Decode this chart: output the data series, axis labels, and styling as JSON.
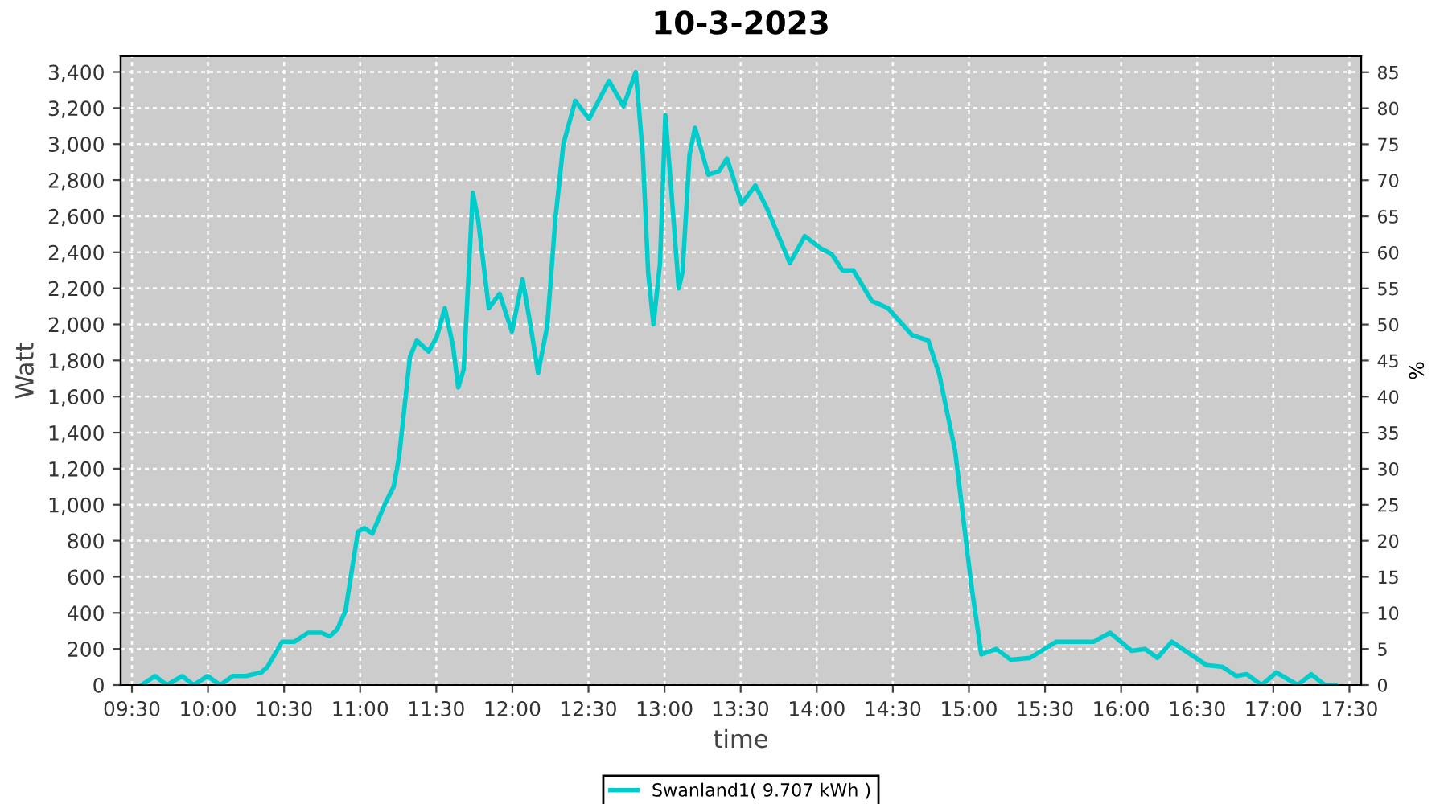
{
  "chart_data": {
    "type": "line",
    "title": "10-3-2023",
    "xlabel": "time",
    "ylabel": "Watt",
    "y2label": "%",
    "xlim": [
      9.426,
      17.577
    ],
    "xticks": [
      {
        "value": 9.5,
        "label": "09:30"
      },
      {
        "value": 10,
        "label": "10:00"
      },
      {
        "value": 10.5,
        "label": "10:30"
      },
      {
        "value": 11,
        "label": "11:00"
      },
      {
        "value": 11.5,
        "label": "11:30"
      },
      {
        "value": 12,
        "label": "12:00"
      },
      {
        "value": 12.5,
        "label": "12:30"
      },
      {
        "value": 13,
        "label": "13:00"
      },
      {
        "value": 13.5,
        "label": "13:30"
      },
      {
        "value": 14,
        "label": "14:00"
      },
      {
        "value": 14.5,
        "label": "14:30"
      },
      {
        "value": 15,
        "label": "15:00"
      },
      {
        "value": 15.5,
        "label": "15:30"
      },
      {
        "value": 16,
        "label": "16:00"
      },
      {
        "value": 16.5,
        "label": "16:30"
      },
      {
        "value": 17,
        "label": "17:00"
      },
      {
        "value": 17.5,
        "label": "17:30"
      }
    ],
    "ylim": [
      0,
      3487
    ],
    "yticks": [
      0,
      200,
      400,
      600,
      800,
      {
        "value": 1000,
        "label": "1,000"
      },
      {
        "value": 1200,
        "label": "1,200"
      },
      {
        "value": 1400,
        "label": "1,400"
      },
      {
        "value": 1600,
        "label": "1,600"
      },
      {
        "value": 1800,
        "label": "1,800"
      },
      {
        "value": 2000,
        "label": "2,000"
      },
      {
        "value": 2200,
        "label": "2,200"
      },
      {
        "value": 2400,
        "label": "2,400"
      },
      {
        "value": 2600,
        "label": "2,600"
      },
      {
        "value": 2800,
        "label": "2,800"
      },
      {
        "value": 3000,
        "label": "3,000"
      },
      {
        "value": 3200,
        "label": "3,200"
      },
      {
        "value": 3400,
        "label": "3,400"
      }
    ],
    "y2lim": [
      0,
      87.2
    ],
    "y2ticks": [
      0,
      5,
      10,
      15,
      20,
      25,
      30,
      35,
      40,
      45,
      50,
      55,
      60,
      65,
      70,
      75,
      80,
      85
    ],
    "grid": true,
    "legend": "bottom",
    "marker": "none",
    "line_style": "solid",
    "series": [
      {
        "name": "Swanland1( 9.707 kWh )",
        "color": "#00cccc",
        "x": [
          9.563,
          9.652,
          9.73,
          9.83,
          9.905,
          9.997,
          10.08,
          10.163,
          10.25,
          10.35,
          10.39,
          10.487,
          10.568,
          10.657,
          10.745,
          10.8,
          10.85,
          10.903,
          10.985,
          11.027,
          11.08,
          11.16,
          11.22,
          11.256,
          11.327,
          11.372,
          11.45,
          11.503,
          11.556,
          11.61,
          11.644,
          11.68,
          11.74,
          11.775,
          11.845,
          11.916,
          11.997,
          12.067,
          12.12,
          12.169,
          12.229,
          12.282,
          12.335,
          12.413,
          12.504,
          12.635,
          12.73,
          12.811,
          12.857,
          12.892,
          12.927,
          12.97,
          13.005,
          13.04,
          13.093,
          13.118,
          13.164,
          13.2,
          13.287,
          13.358,
          13.41,
          13.506,
          13.597,
          13.675,
          13.823,
          13.922,
          14.028,
          14.098,
          14.169,
          14.24,
          14.362,
          14.468,
          14.627,
          14.733,
          14.803,
          14.909,
          15.015,
          15.081,
          15.18,
          15.275,
          15.4,
          15.575,
          15.82,
          15.927,
          16.068,
          16.157,
          16.238,
          16.333,
          16.456,
          16.562,
          16.668,
          16.756,
          16.826,
          16.922,
          17.02,
          17.16,
          17.25,
          17.338,
          17.408
        ],
        "values": [
          0,
          50,
          0,
          50,
          0,
          50,
          0,
          50,
          50,
          70,
          100,
          240,
          240,
          290,
          290,
          270,
          310,
          410,
          850,
          870,
          840,
          1000,
          1100,
          1270,
          1820,
          1910,
          1850,
          1930,
          2090,
          1880,
          1650,
          1750,
          2730,
          2580,
          2090,
          2170,
          1960,
          2250,
          1990,
          1730,
          1990,
          2580,
          3000,
          3240,
          3140,
          3350,
          3210,
          3400,
          2940,
          2290,
          2000,
          2340,
          3160,
          2790,
          2200,
          2290,
          2940,
          3090,
          2830,
          2850,
          2920,
          2670,
          2770,
          2640,
          2340,
          2490,
          2420,
          2390,
          2300,
          2300,
          2130,
          2090,
          1940,
          1910,
          1730,
          1300,
          560,
          170,
          200,
          140,
          150,
          240,
          240,
          290,
          190,
          200,
          150,
          240,
          170,
          110,
          100,
          50,
          60,
          0,
          70,
          0,
          60,
          0,
          0
        ]
      }
    ]
  }
}
